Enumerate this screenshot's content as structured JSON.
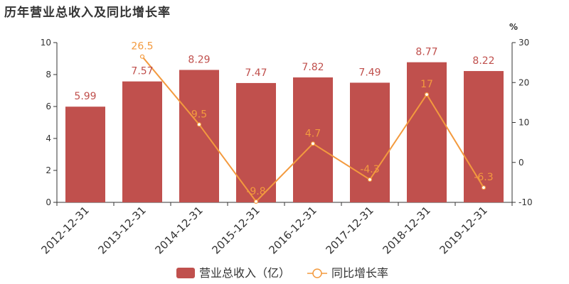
{
  "title": "历年营业总收入及同比增长率",
  "chart_data": {
    "type": "bar",
    "categories": [
      "2012-12-31",
      "2013-12-31",
      "2014-12-31",
      "2015-12-31",
      "2016-12-31",
      "2017-12-31",
      "2018-12-31",
      "2019-12-31"
    ],
    "series": [
      {
        "name": "营业总收入（亿）",
        "type": "bar",
        "axis": "left",
        "values": [
          5.99,
          7.57,
          8.29,
          7.47,
          7.82,
          7.49,
          8.77,
          8.22
        ],
        "labels": [
          "5.99",
          "7.57",
          "8.29",
          "7.47",
          "7.82",
          "7.49",
          "8.77",
          "8.22"
        ],
        "color": "#c0504d"
      },
      {
        "name": "同比增长率",
        "type": "line",
        "axis": "right",
        "values": [
          null,
          26.5,
          9.5,
          -9.8,
          4.7,
          -4.3,
          17,
          -6.3
        ],
        "labels": [
          "",
          "26.5",
          "9.5",
          "-9.8",
          "4.7",
          "-4.3",
          "17",
          "-6.3"
        ],
        "color": "#f39a3e"
      }
    ],
    "y_left": {
      "min": 0,
      "max": 10,
      "ticks": [
        "0",
        "2",
        "4",
        "6",
        "8",
        "10"
      ]
    },
    "y_right": {
      "min": -10,
      "max": 30,
      "unit": "%",
      "ticks": [
        "-10",
        "0",
        "10",
        "20",
        "30"
      ]
    },
    "grid": false,
    "legend_position": "bottom-center"
  }
}
